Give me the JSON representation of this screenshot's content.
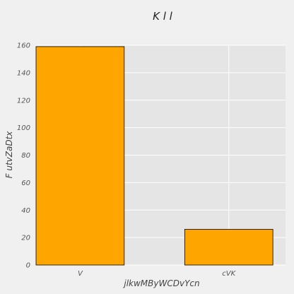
{
  "chart_data": {
    "type": "bar",
    "title": "K  l l",
    "xlabel": "jlkwMByWCDvYcn",
    "ylabel": "F  utvZaDtx",
    "categories": [
      "V",
      "cVK"
    ],
    "values": [
      159,
      26
    ],
    "ylim": [
      0,
      160
    ],
    "yticks": [
      0,
      20,
      40,
      60,
      80,
      100,
      120,
      140,
      160
    ],
    "grid": true,
    "colors": {
      "bar": "#ffa500",
      "bar_edge": "#000000",
      "plot_bg": "#e5e5e5",
      "grid": "#ffffff"
    }
  }
}
